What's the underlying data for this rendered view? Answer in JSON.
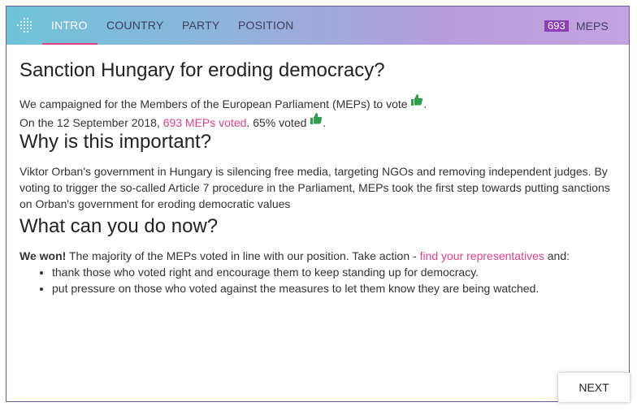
{
  "nav": {
    "tabs": [
      {
        "label": "INTRO",
        "active": true
      },
      {
        "label": "COUNTRY",
        "active": false
      },
      {
        "label": "PARTY",
        "active": false
      },
      {
        "label": "POSITION",
        "active": false
      }
    ],
    "mep_count": "693",
    "mep_label": "MEPS"
  },
  "intro": {
    "title": "Sanction Hungary for eroding democracy?",
    "campaign_text": "We campaigned for the Members of the European Parliament (MEPs) to vote",
    "campaign_end": ".",
    "vote_prefix": "On the 12 September 2018,",
    "vote_link": "693 MEPs voted",
    "vote_mid": ". 65% voted",
    "vote_end": "."
  },
  "why": {
    "heading": "Why is this important?",
    "body": "Viktor Orban's government in Hungary is silencing free media, targeting NGOs and removing independent judges. By voting to trigger the so-called Article 7 procedure in the Parliament, MEPs took the first step towards putting sanctions on Orban's government for eroding democratic values"
  },
  "action": {
    "heading": "What can you do now?",
    "bold": "We won!",
    "text": "The majority of the MEPs voted in line with our position. Take action -",
    "link": "find your representatives",
    "text_end": "and:",
    "items": [
      "thank those who voted right and encourage them to keep standing up for democracy.",
      "put pressure on those who voted against the measures to let them know they are being watched."
    ]
  },
  "next_button": "NEXT",
  "colors": {
    "accent": "#e0408a",
    "thumb": "#2e9e4a",
    "badge": "#8b3fb8"
  }
}
